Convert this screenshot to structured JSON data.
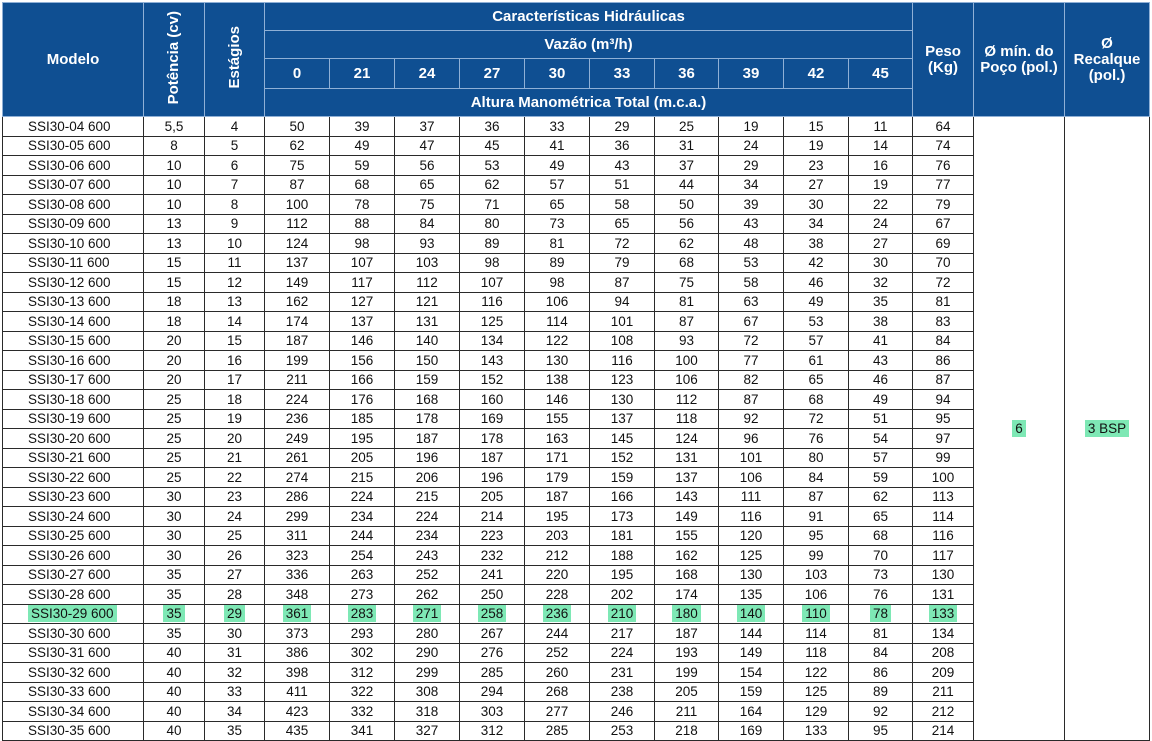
{
  "headers": {
    "model": "Modelo",
    "power": "Potência (cv)",
    "stages": "Estágios",
    "hydraulic": "Características Hidráulicas",
    "flow": "Vazão (m³/h)",
    "flow_values": [
      "0",
      "21",
      "24",
      "27",
      "30",
      "33",
      "36",
      "39",
      "42",
      "45"
    ],
    "head": "Altura Manométrica Total (m.c.a.)",
    "weight_line1": "Peso",
    "weight_line2": "(Kg)",
    "well_line1": "Ø mín. do",
    "well_line2": "Poço (pol.)",
    "discharge_line1": "Ø",
    "discharge_line2": "Recalque",
    "discharge_line3": "(pol.)"
  },
  "merged": {
    "well_diameter": "6",
    "discharge": "3 BSP"
  },
  "highlight_row": 25,
  "rows": [
    [
      "SSI30-04 600",
      "5,5",
      "4",
      "50",
      "39",
      "37",
      "36",
      "33",
      "29",
      "25",
      "19",
      "15",
      "11",
      "64"
    ],
    [
      "SSI30-05 600",
      "8",
      "5",
      "62",
      "49",
      "47",
      "45",
      "41",
      "36",
      "31",
      "24",
      "19",
      "14",
      "74"
    ],
    [
      "SSI30-06 600",
      "10",
      "6",
      "75",
      "59",
      "56",
      "53",
      "49",
      "43",
      "37",
      "29",
      "23",
      "16",
      "76"
    ],
    [
      "SSI30-07 600",
      "10",
      "7",
      "87",
      "68",
      "65",
      "62",
      "57",
      "51",
      "44",
      "34",
      "27",
      "19",
      "77"
    ],
    [
      "SSI30-08 600",
      "10",
      "8",
      "100",
      "78",
      "75",
      "71",
      "65",
      "58",
      "50",
      "39",
      "30",
      "22",
      "79"
    ],
    [
      "SSI30-09 600",
      "13",
      "9",
      "112",
      "88",
      "84",
      "80",
      "73",
      "65",
      "56",
      "43",
      "34",
      "24",
      "67"
    ],
    [
      "SSI30-10 600",
      "13",
      "10",
      "124",
      "98",
      "93",
      "89",
      "81",
      "72",
      "62",
      "48",
      "38",
      "27",
      "69"
    ],
    [
      "SSI30-11 600",
      "15",
      "11",
      "137",
      "107",
      "103",
      "98",
      "89",
      "79",
      "68",
      "53",
      "42",
      "30",
      "70"
    ],
    [
      "SSI30-12 600",
      "15",
      "12",
      "149",
      "117",
      "112",
      "107",
      "98",
      "87",
      "75",
      "58",
      "46",
      "32",
      "72"
    ],
    [
      "SSI30-13 600",
      "18",
      "13",
      "162",
      "127",
      "121",
      "116",
      "106",
      "94",
      "81",
      "63",
      "49",
      "35",
      "81"
    ],
    [
      "SSI30-14 600",
      "18",
      "14",
      "174",
      "137",
      "131",
      "125",
      "114",
      "101",
      "87",
      "67",
      "53",
      "38",
      "83"
    ],
    [
      "SSI30-15 600",
      "20",
      "15",
      "187",
      "146",
      "140",
      "134",
      "122",
      "108",
      "93",
      "72",
      "57",
      "41",
      "84"
    ],
    [
      "SSI30-16 600",
      "20",
      "16",
      "199",
      "156",
      "150",
      "143",
      "130",
      "116",
      "100",
      "77",
      "61",
      "43",
      "86"
    ],
    [
      "SSI30-17 600",
      "20",
      "17",
      "211",
      "166",
      "159",
      "152",
      "138",
      "123",
      "106",
      "82",
      "65",
      "46",
      "87"
    ],
    [
      "SSI30-18 600",
      "25",
      "18",
      "224",
      "176",
      "168",
      "160",
      "146",
      "130",
      "112",
      "87",
      "68",
      "49",
      "94"
    ],
    [
      "SSI30-19 600",
      "25",
      "19",
      "236",
      "185",
      "178",
      "169",
      "155",
      "137",
      "118",
      "92",
      "72",
      "51",
      "95"
    ],
    [
      "SSI30-20 600",
      "25",
      "20",
      "249",
      "195",
      "187",
      "178",
      "163",
      "145",
      "124",
      "96",
      "76",
      "54",
      "97"
    ],
    [
      "SSI30-21 600",
      "25",
      "21",
      "261",
      "205",
      "196",
      "187",
      "171",
      "152",
      "131",
      "101",
      "80",
      "57",
      "99"
    ],
    [
      "SSI30-22 600",
      "25",
      "22",
      "274",
      "215",
      "206",
      "196",
      "179",
      "159",
      "137",
      "106",
      "84",
      "59",
      "100"
    ],
    [
      "SSI30-23 600",
      "30",
      "23",
      "286",
      "224",
      "215",
      "205",
      "187",
      "166",
      "143",
      "111",
      "87",
      "62",
      "113"
    ],
    [
      "SSI30-24 600",
      "30",
      "24",
      "299",
      "234",
      "224",
      "214",
      "195",
      "173",
      "149",
      "116",
      "91",
      "65",
      "114"
    ],
    [
      "SSI30-25 600",
      "30",
      "25",
      "311",
      "244",
      "234",
      "223",
      "203",
      "181",
      "155",
      "120",
      "95",
      "68",
      "116"
    ],
    [
      "SSI30-26 600",
      "30",
      "26",
      "323",
      "254",
      "243",
      "232",
      "212",
      "188",
      "162",
      "125",
      "99",
      "70",
      "117"
    ],
    [
      "SSI30-27 600",
      "35",
      "27",
      "336",
      "263",
      "252",
      "241",
      "220",
      "195",
      "168",
      "130",
      "103",
      "73",
      "130"
    ],
    [
      "SSI30-28 600",
      "35",
      "28",
      "348",
      "273",
      "262",
      "250",
      "228",
      "202",
      "174",
      "135",
      "106",
      "76",
      "131"
    ],
    [
      "SSI30-29 600",
      "35",
      "29",
      "361",
      "283",
      "271",
      "258",
      "236",
      "210",
      "180",
      "140",
      "110",
      "78",
      "133"
    ],
    [
      "SSI30-30 600",
      "35",
      "30",
      "373",
      "293",
      "280",
      "267",
      "244",
      "217",
      "187",
      "144",
      "114",
      "81",
      "134"
    ],
    [
      "SSI30-31 600",
      "40",
      "31",
      "386",
      "302",
      "290",
      "276",
      "252",
      "224",
      "193",
      "149",
      "118",
      "84",
      "208"
    ],
    [
      "SSI30-32 600",
      "40",
      "32",
      "398",
      "312",
      "299",
      "285",
      "260",
      "231",
      "199",
      "154",
      "122",
      "86",
      "209"
    ],
    [
      "SSI30-33 600",
      "40",
      "33",
      "411",
      "322",
      "308",
      "294",
      "268",
      "238",
      "205",
      "159",
      "125",
      "89",
      "211"
    ],
    [
      "SSI30-34 600",
      "40",
      "34",
      "423",
      "332",
      "318",
      "303",
      "277",
      "246",
      "211",
      "164",
      "129",
      "92",
      "212"
    ],
    [
      "SSI30-35 600",
      "40",
      "35",
      "435",
      "341",
      "327",
      "312",
      "285",
      "253",
      "218",
      "169",
      "133",
      "95",
      "214"
    ]
  ]
}
